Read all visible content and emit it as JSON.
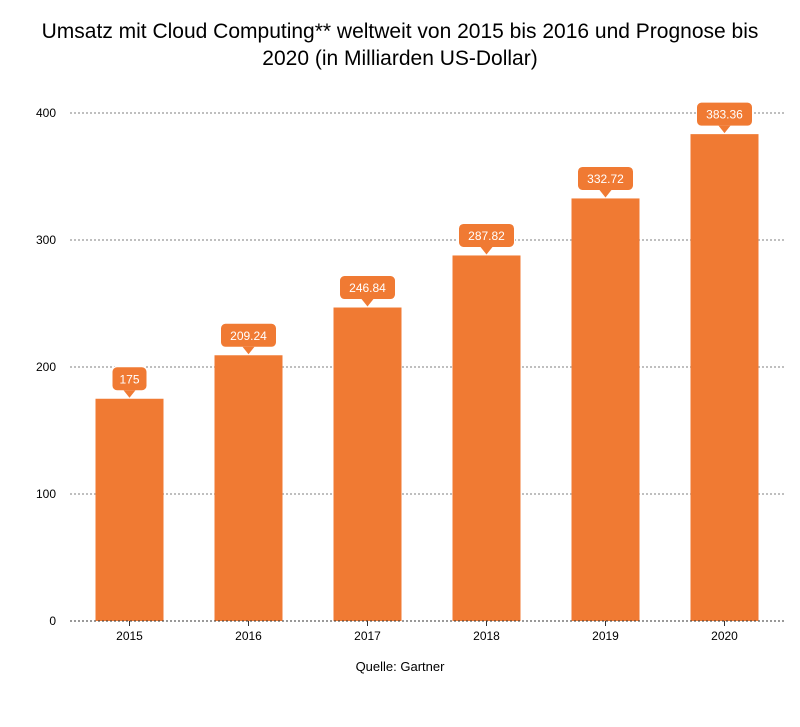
{
  "chart_data": {
    "type": "bar",
    "title": "Umsatz mit Cloud Computing** weltweit von 2015 bis 2016 und Prognose bis 2020 (in Milliarden US-Dollar)",
    "categories": [
      "2015",
      "2016",
      "2017",
      "2018",
      "2019",
      "2020"
    ],
    "values": [
      175,
      209.24,
      246.84,
      287.82,
      332.72,
      383.36
    ],
    "value_labels": [
      "175",
      "209.24",
      "246.84",
      "287.82",
      "332.72",
      "383.36"
    ],
    "ylim": [
      0,
      400
    ],
    "yticks": [
      0,
      100,
      200,
      300,
      400
    ],
    "ytick_labels": [
      "0",
      "100",
      "200",
      "300",
      "400"
    ],
    "grid": true,
    "bar_color": "#f07a33",
    "xlabel": "",
    "ylabel": ""
  },
  "source": "Quelle: Gartner"
}
